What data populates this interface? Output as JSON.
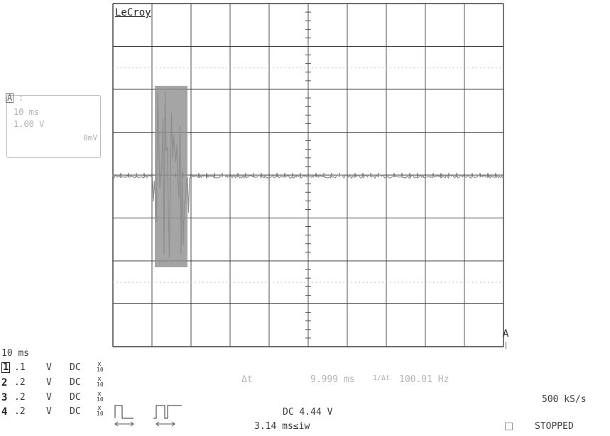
{
  "scope": {
    "brand": "LeCroy",
    "zoom_box": {
      "channel_icon": "A",
      "timebase": "10 ms",
      "volts": "1.00 V",
      "offset": "0mV"
    },
    "trigger_marker": "A",
    "timebase_readout": "10 ms",
    "channels": [
      {
        "id": "1",
        "scale": ".1",
        "unit": "V",
        "coupling": "DC",
        "probe": "x10",
        "boxed": true
      },
      {
        "id": "2",
        "scale": ".2",
        "unit": "V",
        "coupling": "DC",
        "probe": "x10",
        "boxed": false
      },
      {
        "id": "3",
        "scale": ".2",
        "unit": "V",
        "coupling": "DC",
        "probe": "x10",
        "boxed": false
      },
      {
        "id": "4",
        "scale": ".2",
        "unit": "V",
        "coupling": "DC",
        "probe": "x10",
        "boxed": false
      }
    ],
    "measurement": {
      "dt_label": "Δt",
      "dt_value": "9.999 ms",
      "inv_label": "1/Δt",
      "inv_value": "100.01 Hz"
    },
    "trigger": {
      "coupling_level": "DC 4.44 V",
      "width_condition": "3.14 ms≤iw"
    },
    "sample_rate": "500 kS/s",
    "acq_status": "STOPPED",
    "colors": {
      "trace": "#8e8e8e",
      "grid": "#3c3c3c",
      "text": "#3a3a3a",
      "faint": "#b4b4b4"
    }
  }
}
